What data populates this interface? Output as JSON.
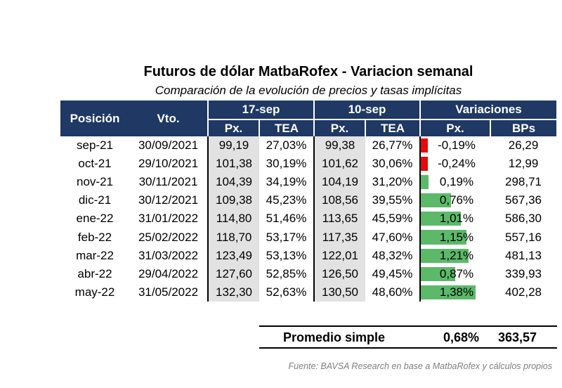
{
  "title": "Futuros de dólar MatbaRofex - Variacion semanal",
  "subtitle": "Comparación de la evolución de precios y tasas implícitas",
  "headers": {
    "posicion": "Posición",
    "vto": "Vto.",
    "group1": "17-sep",
    "group2": "10-sep",
    "group3": "Variaciones",
    "px": "Px.",
    "tea": "TEA",
    "bps": "BPs"
  },
  "rows": [
    {
      "pos": "sep-21",
      "vto": "30/09/2021",
      "px1": "99,19",
      "tea1": "27,03%",
      "px2": "99,38",
      "tea2": "26,77%",
      "var_px": "-0,19%",
      "bps": "26,29"
    },
    {
      "pos": "oct-21",
      "vto": "29/10/2021",
      "px1": "101,38",
      "tea1": "30,19%",
      "px2": "101,62",
      "tea2": "30,06%",
      "var_px": "-0,24%",
      "bps": "12,99"
    },
    {
      "pos": "nov-21",
      "vto": "30/11/2021",
      "px1": "104,39",
      "tea1": "34,19%",
      "px2": "104,19",
      "tea2": "31,20%",
      "var_px": "0,19%",
      "bps": "298,71"
    },
    {
      "pos": "dic-21",
      "vto": "30/12/2021",
      "px1": "109,38",
      "tea1": "45,23%",
      "px2": "108,56",
      "tea2": "39,55%",
      "var_px": "0,76%",
      "bps": "567,36"
    },
    {
      "pos": "ene-22",
      "vto": "31/01/2022",
      "px1": "114,80",
      "tea1": "51,46%",
      "px2": "113,65",
      "tea2": "45,59%",
      "var_px": "1,01%",
      "bps": "586,30"
    },
    {
      "pos": "feb-22",
      "vto": "25/02/2022",
      "px1": "118,70",
      "tea1": "53,17%",
      "px2": "117,35",
      "tea2": "47,60%",
      "var_px": "1,15%",
      "bps": "557,16"
    },
    {
      "pos": "mar-22",
      "vto": "31/03/2022",
      "px1": "123,49",
      "tea1": "53,13%",
      "px2": "122,01",
      "tea2": "48,32%",
      "var_px": "1,21%",
      "bps": "481,13"
    },
    {
      "pos": "abr-22",
      "vto": "29/04/2022",
      "px1": "127,60",
      "tea1": "52,85%",
      "px2": "126,50",
      "tea2": "49,45%",
      "var_px": "0,87%",
      "bps": "339,93"
    },
    {
      "pos": "may-22",
      "vto": "31/05/2022",
      "px1": "132,30",
      "tea1": "52,63%",
      "px2": "130,50",
      "tea2": "48,60%",
      "var_px": "1,38%",
      "bps": "402,28"
    }
  ],
  "summary": {
    "label": "Promedio simple",
    "px": "0,68%",
    "bps": "363,57"
  },
  "source": "Fuente: BAVSA Research en base a MatbaRofex y cálculos propios",
  "colors": {
    "header_bg": "#1f3864",
    "gray_cell": "#e2e2e2",
    "neg_bar": "#e8070b",
    "pos_bar": "#5cb96a",
    "source_text": "#7f7f7f"
  }
}
